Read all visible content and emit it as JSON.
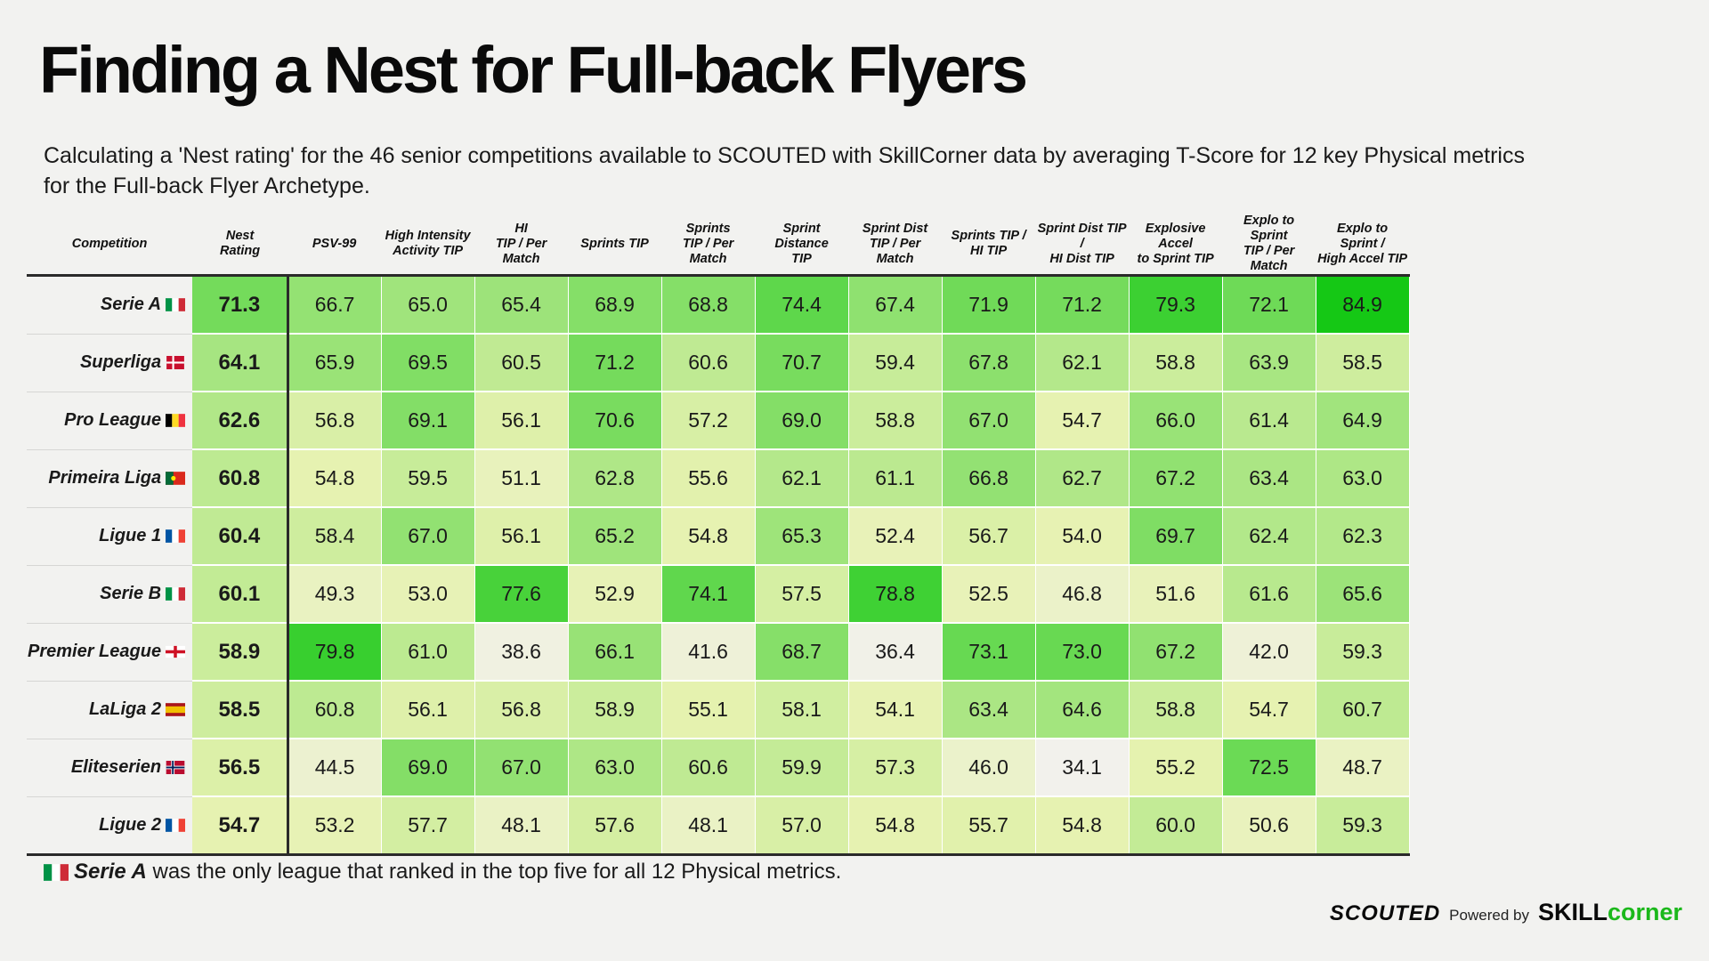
{
  "header": {
    "title": "Finding a Nest for Full-back Flyers",
    "subtitle": "Calculating a 'Nest rating' for the 46 senior competitions available to SCOUTED with SkillCorner data by averaging T-Score for 12 key Physical metrics for the Full-back Flyer Archetype."
  },
  "colors": {
    "scale_low": "#f2f1ec",
    "scale_mid": "#e6f2b0",
    "scale_high": "#14c814",
    "rule": "#2a2a2a"
  },
  "chart_data": {
    "type": "table",
    "title": "Finding a Nest for Full-back Flyers",
    "row_header_label": "Competition",
    "color_range": [
      35,
      85
    ],
    "columns": [
      [
        "Nest",
        "Rating"
      ],
      [
        "PSV-99"
      ],
      [
        "High Intensity",
        "Activity TIP"
      ],
      [
        "HI",
        "TIP / Per Match"
      ],
      [
        "Sprints TIP"
      ],
      [
        "Sprints",
        "TIP / Per Match"
      ],
      [
        "Sprint Distance",
        "TIP"
      ],
      [
        "Sprint Dist",
        "TIP / Per Match"
      ],
      [
        "Sprints TIP /",
        "HI TIP"
      ],
      [
        "Sprint Dist TIP /",
        "HI Dist TIP"
      ],
      [
        "Explosive Accel",
        "to Sprint TIP"
      ],
      [
        "Explo to Sprint",
        "TIP / Per Match"
      ],
      [
        "Explo to Sprint /",
        "High Accel TIP"
      ]
    ],
    "rows": [
      {
        "competition": "Serie A",
        "flag": "italy-flag-icon",
        "values": [
          71.3,
          66.7,
          65.0,
          65.4,
          68.9,
          68.8,
          74.4,
          67.4,
          71.9,
          71.2,
          79.3,
          72.1,
          84.9
        ]
      },
      {
        "competition": "Superliga",
        "flag": "denmark-flag-icon",
        "values": [
          64.1,
          65.9,
          69.5,
          60.5,
          71.2,
          60.6,
          70.7,
          59.4,
          67.8,
          62.1,
          58.8,
          63.9,
          58.5
        ]
      },
      {
        "competition": "Pro League",
        "flag": "belgium-flag-icon",
        "values": [
          62.6,
          56.8,
          69.1,
          56.1,
          70.6,
          57.2,
          69.0,
          58.8,
          67.0,
          54.7,
          66.0,
          61.4,
          64.9
        ]
      },
      {
        "competition": "Primeira Liga",
        "flag": "portugal-flag-icon",
        "values": [
          60.8,
          54.8,
          59.5,
          51.1,
          62.8,
          55.6,
          62.1,
          61.1,
          66.8,
          62.7,
          67.2,
          63.4,
          63.0
        ]
      },
      {
        "competition": "Ligue 1",
        "flag": "france-flag-icon",
        "values": [
          60.4,
          58.4,
          67.0,
          56.1,
          65.2,
          54.8,
          65.3,
          52.4,
          56.7,
          54.0,
          69.7,
          62.4,
          62.3
        ]
      },
      {
        "competition": "Serie B",
        "flag": "italy-flag-icon",
        "values": [
          60.1,
          49.3,
          53.0,
          77.6,
          52.9,
          74.1,
          57.5,
          78.8,
          52.5,
          46.8,
          51.6,
          61.6,
          65.6
        ]
      },
      {
        "competition": "Premier League",
        "flag": "england-flag-icon",
        "values": [
          58.9,
          79.8,
          61.0,
          38.6,
          66.1,
          41.6,
          68.7,
          36.4,
          73.1,
          73.0,
          67.2,
          42.0,
          59.3
        ]
      },
      {
        "competition": "LaLiga 2",
        "flag": "spain-flag-icon",
        "values": [
          58.5,
          60.8,
          56.1,
          56.8,
          58.9,
          55.1,
          58.1,
          54.1,
          63.4,
          64.6,
          58.8,
          54.7,
          60.7
        ]
      },
      {
        "competition": "Eliteserien",
        "flag": "norway-flag-icon",
        "values": [
          56.5,
          44.5,
          69.0,
          67.0,
          63.0,
          60.6,
          59.9,
          57.3,
          46.0,
          34.1,
          55.2,
          72.5,
          48.7
        ]
      },
      {
        "competition": "Ligue 2",
        "flag": "france-flag-icon",
        "values": [
          54.7,
          53.2,
          57.7,
          48.1,
          57.6,
          48.1,
          57.0,
          54.8,
          55.7,
          54.8,
          60.0,
          50.6,
          59.3
        ]
      }
    ]
  },
  "footnote": {
    "flag": "italy-flag-icon",
    "league": "Serie A",
    "text": " was the only league that ranked in the top five for all 12 Physical metrics."
  },
  "brand": {
    "scouted": "SCOUTED",
    "powered_by": "Powered by",
    "skill": "SKILL",
    "corner": "corner"
  }
}
